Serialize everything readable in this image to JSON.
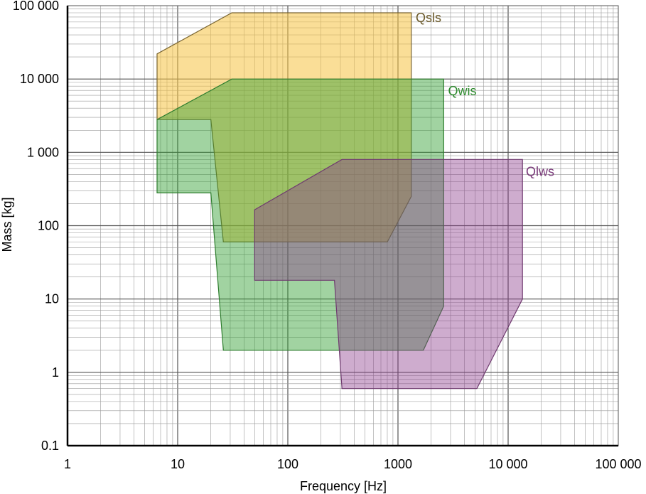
{
  "chart_data": {
    "type": "area",
    "xlabel": "Frequency [Hz]",
    "ylabel": "Mass [kg]",
    "xscale": "log",
    "yscale": "log",
    "xlim": [
      1,
      100000
    ],
    "ylim": [
      0.1,
      100000
    ],
    "grid": true,
    "x_ticks": [
      {
        "value": 1,
        "label": "1"
      },
      {
        "value": 10,
        "label": "10"
      },
      {
        "value": 100,
        "label": "100"
      },
      {
        "value": 1000,
        "label": "1000"
      },
      {
        "value": 10000,
        "label": "10 000"
      },
      {
        "value": 100000,
        "label": "100 000"
      }
    ],
    "y_ticks": [
      {
        "value": 0.1,
        "label": "0.1"
      },
      {
        "value": 1,
        "label": "1"
      },
      {
        "value": 10,
        "label": "10"
      },
      {
        "value": 100,
        "label": "100"
      },
      {
        "value": 1000,
        "label": "1 000"
      },
      {
        "value": 10000,
        "label": "10 000"
      },
      {
        "value": 100000,
        "label": "100 000"
      }
    ],
    "series": [
      {
        "name": "Qsls",
        "fill": "#f5c242",
        "fill_opacity": 0.55,
        "stroke": "#7a6530",
        "label_color": "#6b5a2a",
        "label_at": {
          "x": 1450,
          "y": 80000
        },
        "points": [
          [
            6.5,
            22000
          ],
          [
            31,
            80000
          ],
          [
            1320,
            80000
          ],
          [
            1320,
            250
          ],
          [
            800,
            60
          ],
          [
            26,
            60
          ],
          [
            20,
            2800
          ],
          [
            6.5,
            2800
          ]
        ]
      },
      {
        "name": "Qwis",
        "fill": "#2e9e2e",
        "fill_opacity": 0.45,
        "stroke": "#2e7d2e",
        "label_color": "#2e8b2e",
        "label_at": {
          "x": 2850,
          "y": 8000
        },
        "points": [
          [
            6.5,
            2800
          ],
          [
            31,
            10000
          ],
          [
            2600,
            10000
          ],
          [
            2600,
            8
          ],
          [
            1700,
            2
          ],
          [
            26,
            2
          ],
          [
            20,
            280
          ],
          [
            6.5,
            280
          ]
        ]
      },
      {
        "name": "Qlws",
        "fill": "#8b3a8b",
        "fill_opacity": 0.42,
        "stroke": "#6f3a6f",
        "label_color": "#7a3a7a",
        "label_at": {
          "x": 14500,
          "y": 640
        },
        "points": [
          [
            50,
            165
          ],
          [
            310,
            800
          ],
          [
            13500,
            800
          ],
          [
            13500,
            10
          ],
          [
            5200,
            0.6
          ],
          [
            310,
            0.6
          ],
          [
            265,
            18
          ],
          [
            50,
            18
          ]
        ]
      }
    ]
  }
}
